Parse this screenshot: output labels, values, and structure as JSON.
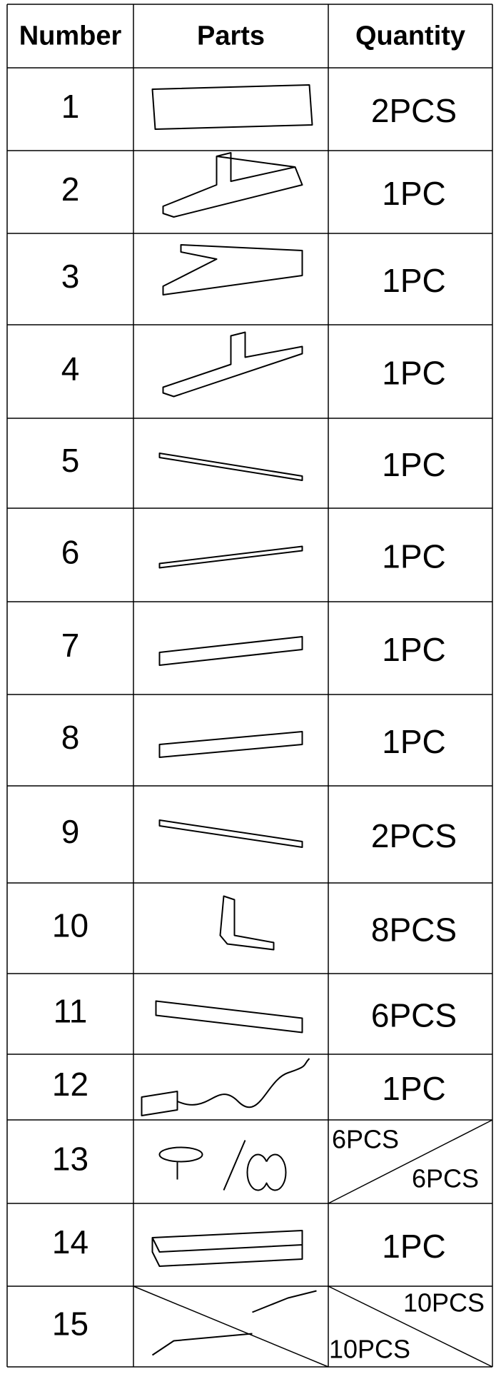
{
  "table": {
    "header": [
      "Number",
      "Parts",
      "Quantity"
    ],
    "rows": [
      {
        "number": "1",
        "quantity": [
          "2PCS"
        ]
      },
      {
        "number": "2",
        "quantity": [
          "1PC"
        ]
      },
      {
        "number": "3",
        "quantity": [
          "1PC"
        ]
      },
      {
        "number": "4",
        "quantity": [
          "1PC"
        ]
      },
      {
        "number": "5",
        "quantity": [
          "1PC"
        ]
      },
      {
        "number": "6",
        "quantity": [
          "1PC"
        ]
      },
      {
        "number": "7",
        "quantity": [
          "1PC"
        ]
      },
      {
        "number": "8",
        "quantity": [
          "1PC"
        ]
      },
      {
        "number": "9",
        "quantity": [
          "2PCS"
        ]
      },
      {
        "number": "10",
        "quantity": [
          "8PCS"
        ]
      },
      {
        "number": "11",
        "quantity": [
          "6PCS"
        ]
      },
      {
        "number": "12",
        "quantity": [
          "1PC"
        ]
      },
      {
        "number": "13",
        "quantity": [
          "6PCS",
          "6PCS"
        ]
      },
      {
        "number": "14",
        "quantity": [
          "1PC"
        ]
      },
      {
        "number": "15",
        "quantity": [
          "10PCS",
          "10PCS"
        ]
      }
    ]
  }
}
